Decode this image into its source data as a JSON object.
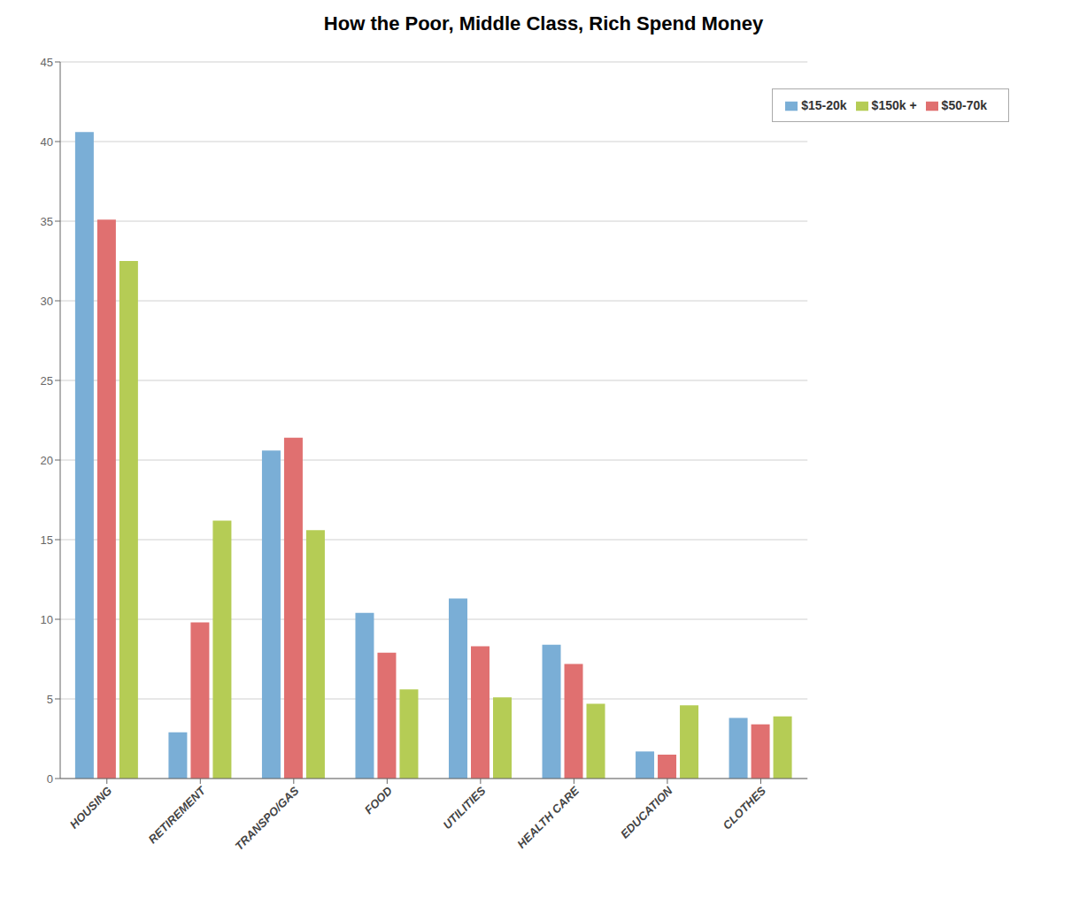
{
  "chart_data": {
    "type": "bar",
    "title": "How the Poor, Middle Class, Rich Spend Money",
    "categories": [
      "HOUSING",
      "RETIREMENT",
      "TRANSPO/GAS",
      "FOOD",
      "UTILITIES",
      "HEALTH CARE",
      "EDUCATION",
      "CLOTHES"
    ],
    "series": [
      {
        "name": "$15-20k",
        "color": "#7aaed6",
        "values": [
          40.6,
          2.9,
          20.6,
          10.4,
          11.3,
          8.4,
          1.7,
          3.8
        ]
      },
      {
        "name": "$50-70k",
        "color": "#e07070",
        "values": [
          35.1,
          9.8,
          21.4,
          7.9,
          8.3,
          7.2,
          1.5,
          3.4
        ]
      },
      {
        "name": "$150k +",
        "color": "#b5cc55",
        "values": [
          32.5,
          16.2,
          15.6,
          5.6,
          5.1,
          4.7,
          4.6,
          3.9
        ]
      }
    ],
    "ylim": [
      0,
      45
    ],
    "yticks": [
      0,
      5,
      10,
      15,
      20,
      25,
      30,
      35,
      40,
      45
    ],
    "grid": true,
    "legend": "upper right"
  }
}
